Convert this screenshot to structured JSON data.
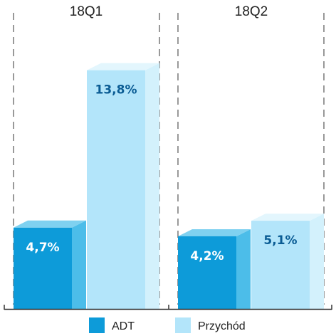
{
  "chart_data": {
    "type": "bar",
    "style": "3d-grouped-bar",
    "categories": [
      "18Q1",
      "18Q2"
    ],
    "series": [
      {
        "name": "ADT",
        "values": [
          4.7,
          4.2
        ],
        "labels": [
          "4,7%",
          "4,2%"
        ],
        "color": "#0D9BD9",
        "side_color": "#4CBDE9",
        "top_color": "#7FD1F0",
        "label_color": "#FFFFFF"
      },
      {
        "name": "Przychód",
        "values": [
          13.8,
          5.1
        ],
        "labels": [
          "13,8%",
          "5,1%"
        ],
        "color": "#B3E5FA",
        "side_color": "#D3F1FC",
        "top_color": "#E3F6FD",
        "label_color": "#0A5C94"
      }
    ],
    "unit": "%",
    "ylim": [
      0,
      15
    ],
    "grid": false,
    "legend_position": "bottom"
  }
}
